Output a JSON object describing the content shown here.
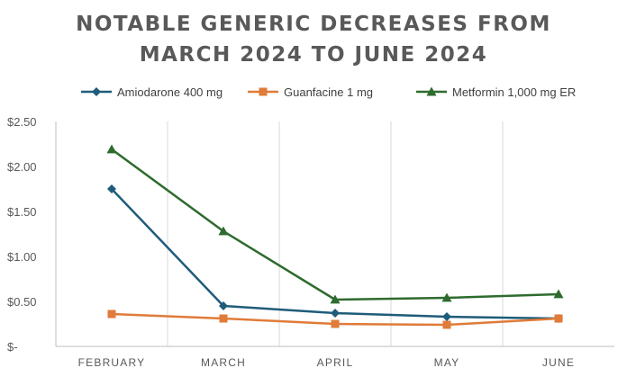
{
  "chart_data": {
    "type": "line",
    "title_lines": [
      "NOTABLE GENERIC DECREASES FROM",
      "MARCH 2024 TO JUNE 2024"
    ],
    "categories": [
      "FEBRUARY",
      "MARCH",
      "APRIL",
      "MAY",
      "JUNE"
    ],
    "series": [
      {
        "name": "Amiodarone 400 mg",
        "color": "#1f5c7a",
        "marker": "diamond",
        "values": [
          1.75,
          0.45,
          0.37,
          0.33,
          0.31
        ]
      },
      {
        "name": "Guanfacine 1 mg",
        "color": "#e07b39",
        "marker": "square",
        "values": [
          0.36,
          0.31,
          0.25,
          0.24,
          0.31
        ]
      },
      {
        "name": "Metformin 1,000 mg ER",
        "color": "#2e6b2e",
        "marker": "triangle",
        "values": [
          2.19,
          1.28,
          0.52,
          0.54,
          0.58
        ]
      }
    ],
    "y_ticks": [
      {
        "value": 0,
        "label": "$-"
      },
      {
        "value": 0.5,
        "label": "$0.50"
      },
      {
        "value": 1.0,
        "label": "$1.00"
      },
      {
        "value": 1.5,
        "label": "$1.50"
      },
      {
        "value": 2.0,
        "label": "$2.00"
      },
      {
        "value": 2.5,
        "label": "$2.50"
      }
    ],
    "ylim": [
      0,
      2.5
    ],
    "xlabel": "",
    "ylabel": "",
    "grid": "vertical",
    "legend_position": "top"
  }
}
